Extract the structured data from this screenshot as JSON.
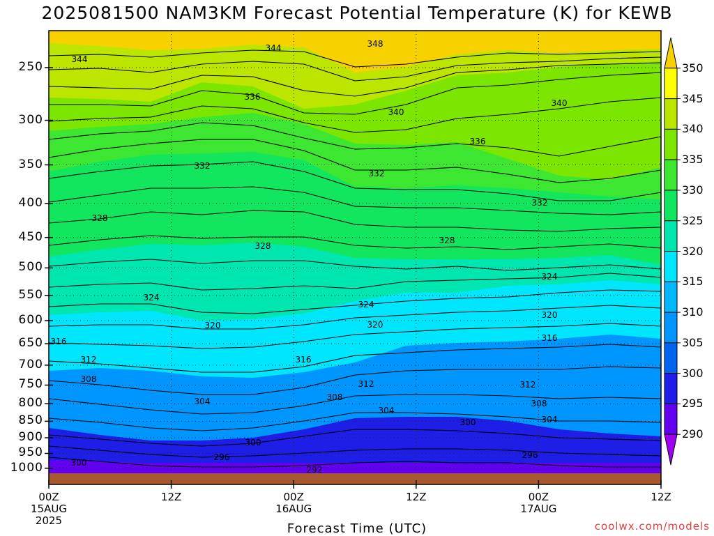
{
  "chart_data": {
    "type": "contour",
    "title": "2025081500 NAM3KM Forecast Potential Temperature (K) for KEWB",
    "xlabel": "Forecast Time (UTC)",
    "ylabel": "",
    "y_ticks": [
      "250",
      "300",
      "350",
      "400",
      "450",
      "500",
      "550",
      "600",
      "650",
      "700",
      "750",
      "800",
      "850",
      "900",
      "950",
      "1000"
    ],
    "x_ticks": [
      {
        "time": "00Z",
        "date": "15AUG",
        "year": "2025"
      },
      {
        "time": "12Z",
        "date": "",
        "year": ""
      },
      {
        "time": "00Z",
        "date": "16AUG",
        "year": ""
      },
      {
        "time": "12Z",
        "date": "",
        "year": ""
      },
      {
        "time": "00Z",
        "date": "17AUG",
        "year": ""
      },
      {
        "time": "12Z",
        "date": "",
        "year": ""
      }
    ],
    "colorbar": {
      "labels": [
        "350",
        "345",
        "340",
        "335",
        "330",
        "325",
        "320",
        "315",
        "310",
        "305",
        "300",
        "295",
        "290"
      ],
      "colors": [
        "#f7d200",
        "#ffff00",
        "#bce600",
        "#7ce600",
        "#3ce631",
        "#12e65e",
        "#00e6b0",
        "#00e6ff",
        "#00b8ff",
        "#0096ff",
        "#0064f0",
        "#1e1ee6",
        "#6400f0",
        "#a000f0"
      ]
    },
    "contour_labels": [
      "348",
      "344",
      "344",
      "340",
      "340",
      "336",
      "336",
      "332",
      "332",
      "332",
      "328",
      "328",
      "328",
      "324",
      "324",
      "324",
      "320",
      "320",
      "320",
      "316",
      "316",
      "316",
      "312",
      "312",
      "312",
      "308",
      "308",
      "308",
      "304",
      "304",
      "304",
      "300",
      "300",
      "300",
      "296",
      "296",
      "292"
    ]
  },
  "credit": "coolwx.com/models"
}
